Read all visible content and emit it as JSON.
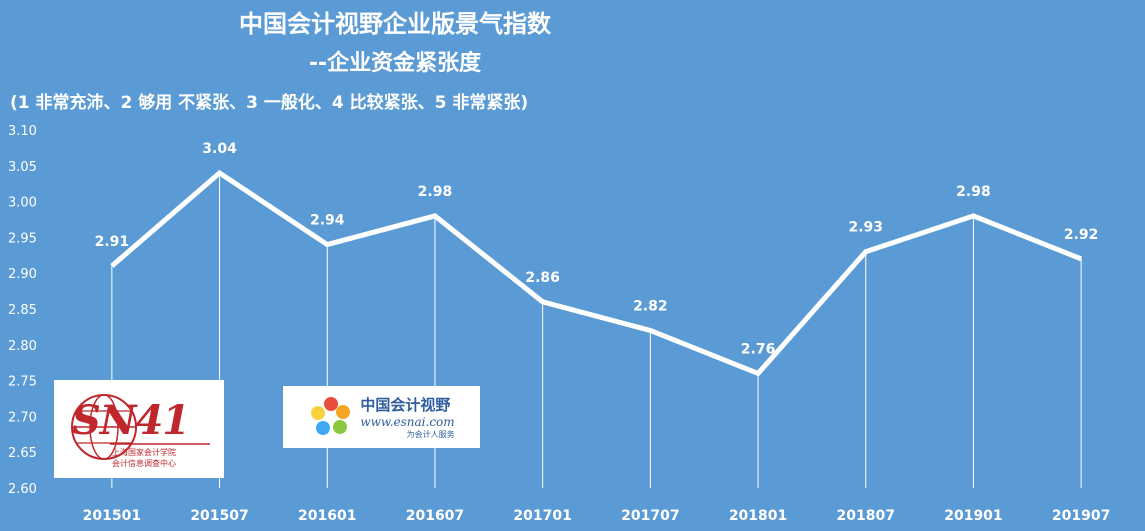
{
  "chart_data": {
    "type": "line",
    "title": "中国会计视野企业版景气指数",
    "subtitle": "--企业资金紧张度",
    "note": "(1 非常充沛、2 够用 不紧张、3 一般化、4 比较紧张、5 非常紧张)",
    "categories": [
      "201501",
      "201507",
      "201601",
      "201607",
      "201701",
      "201707",
      "201801",
      "201807",
      "201901",
      "201907"
    ],
    "series": [
      {
        "values": [
          2.91,
          3.04,
          2.94,
          2.98,
          2.86,
          2.82,
          2.76,
          2.93,
          2.98,
          2.92
        ]
      }
    ],
    "ylim": [
      2.6,
      3.1
    ],
    "yticks": [
      "2.60",
      "2.65",
      "2.70",
      "2.75",
      "2.80",
      "2.85",
      "2.90",
      "2.95",
      "3.00",
      "3.05",
      "3.10"
    ],
    "xlabel": "",
    "ylabel": "",
    "grid": false,
    "drop_lines": true,
    "colors": {
      "background": "#5B9BD5",
      "line": "#FFFFFF",
      "text": "#FFFFFF"
    }
  },
  "logos": {
    "sn41": {
      "mark": "SN41",
      "line1": "上海国家会计学院",
      "line2": "会计信息调查中心"
    },
    "esnai": {
      "name": "中国会计视野",
      "url": "www.esnai.com",
      "slogan": "为会计人服务"
    }
  }
}
